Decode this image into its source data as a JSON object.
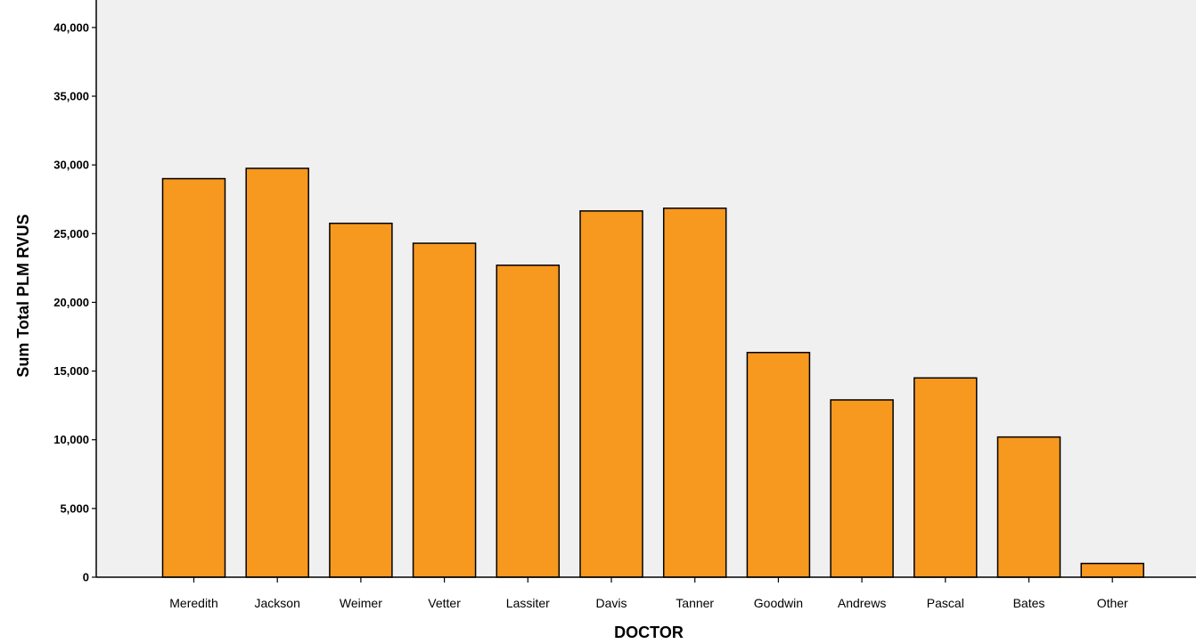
{
  "chart_data": {
    "type": "bar",
    "title": "",
    "xlabel": "DOCTOR",
    "ylabel": "Sum Total PLM RVUS",
    "categories": [
      "Meredith",
      "Jackson",
      "Weimer",
      "Vetter",
      "Lassiter",
      "Davis",
      "Tanner",
      "Goodwin",
      "Andrews",
      "Pascal",
      "Bates",
      "Other"
    ],
    "values": [
      29000,
      29750,
      25750,
      24300,
      22700,
      26650,
      26850,
      16350,
      12900,
      14500,
      10200,
      1000
    ],
    "ylim": [
      0,
      42000
    ],
    "yticks": [
      0,
      5000,
      10000,
      15000,
      20000,
      25000,
      30000,
      35000,
      40000
    ],
    "ytick_labels": [
      "0",
      "5,000",
      "10,000",
      "15,000",
      "20,000",
      "25,000",
      "30,000",
      "35,000",
      "40,000"
    ],
    "grid": false,
    "legend": "none",
    "colors": {
      "bar_fill": "#F7981F",
      "bar_stroke": "#000000",
      "plot_background": "#F0F0F0",
      "page_background": "#FFFFFF"
    }
  }
}
